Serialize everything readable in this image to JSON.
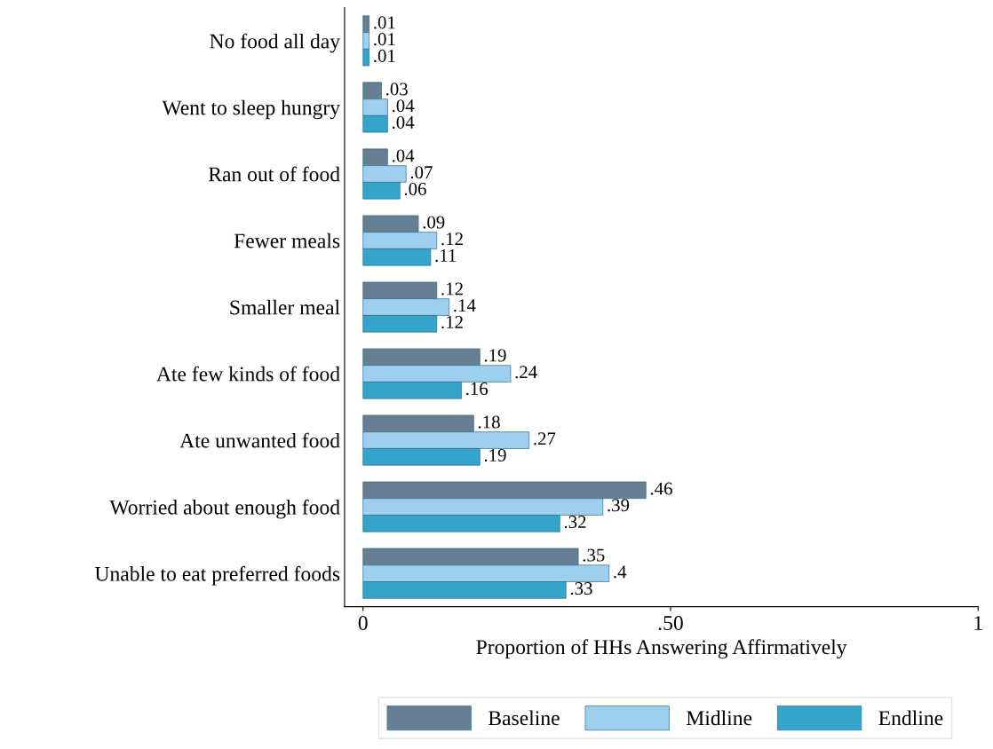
{
  "chart_data": {
    "type": "bar",
    "orientation": "horizontal",
    "categories": [
      "No food all day",
      "Went to sleep hungry",
      "Ran out of food",
      "Fewer meals",
      "Smaller meal",
      "Ate few kinds of food",
      "Ate unwanted food",
      "Worried about enough food",
      "Unable to eat preferred foods"
    ],
    "series": [
      {
        "name": "Baseline",
        "color": "#687f93",
        "values": [
          0.01,
          0.03,
          0.04,
          0.09,
          0.12,
          0.19,
          0.18,
          0.46,
          0.35
        ],
        "value_labels": [
          ".01",
          ".03",
          ".04",
          ".09",
          ".12",
          ".19",
          ".18",
          ".46",
          ".35"
        ]
      },
      {
        "name": "Midline",
        "color": "#9fcfee",
        "values": [
          0.01,
          0.04,
          0.07,
          0.12,
          0.14,
          0.24,
          0.27,
          0.39,
          0.4
        ],
        "value_labels": [
          ".01",
          ".04",
          ".07",
          ".12",
          ".14",
          ".24",
          ".27",
          ".39",
          ".4"
        ]
      },
      {
        "name": "Endline",
        "color": "#34a4cb",
        "values": [
          0.01,
          0.04,
          0.06,
          0.11,
          0.12,
          0.16,
          0.19,
          0.32,
          0.33
        ],
        "value_labels": [
          ".01",
          ".04",
          ".06",
          ".11",
          ".12",
          ".16",
          ".19",
          ".32",
          ".33"
        ]
      }
    ],
    "xlabel": "Proportion of HHs Answering Affirmatively",
    "xlim": [
      -0.03,
      1
    ],
    "xticks": [
      0,
      {
        "value": 0.5,
        "label": ".50"
      },
      1
    ],
    "grid": false,
    "legend": "bottom"
  }
}
